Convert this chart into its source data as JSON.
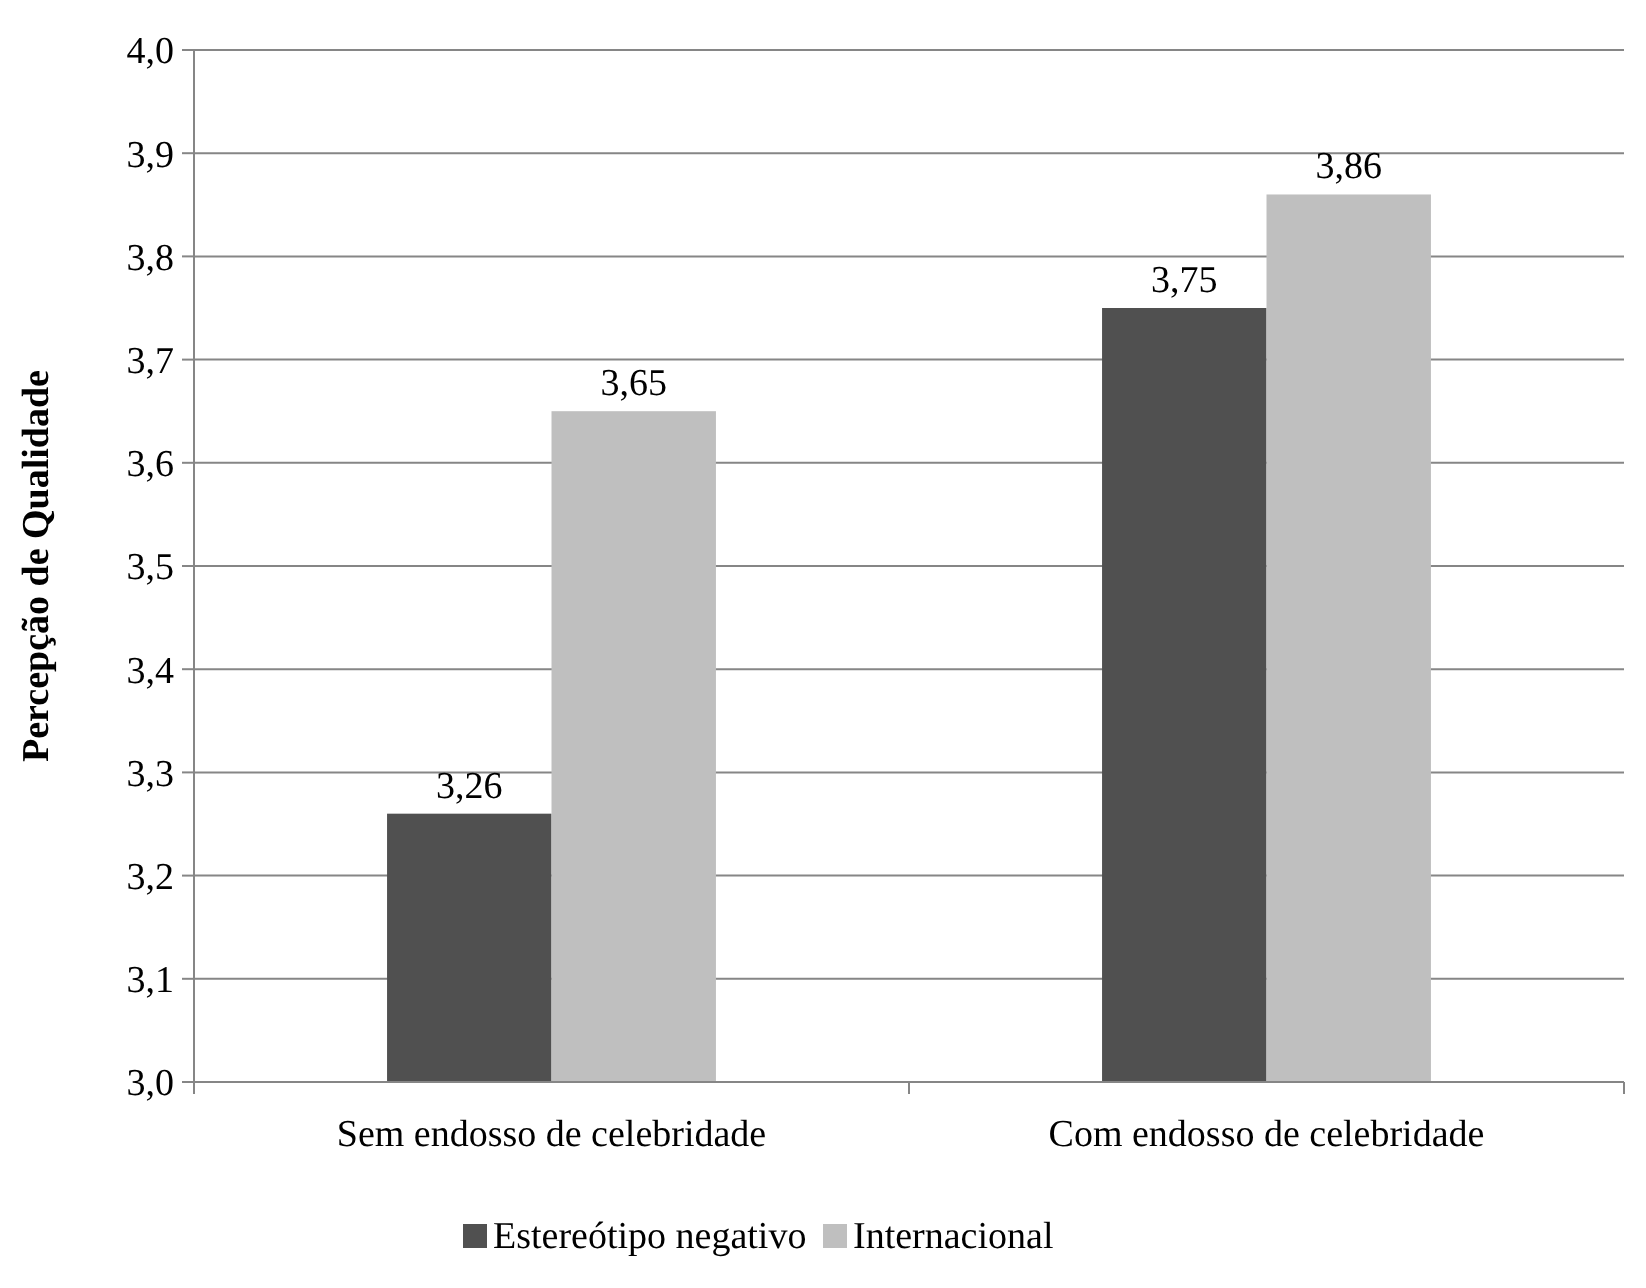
{
  "chart_data": {
    "type": "bar",
    "ylabel": "Percepção de Qualidade",
    "categories": [
      "Sem endosso de celebridade",
      "Com endosso de celebridade"
    ],
    "series": [
      {
        "name": "Estereótipo negativo",
        "color": "#505050",
        "values": [
          3.26,
          3.75
        ],
        "value_labels": [
          "3,26",
          "3,75"
        ]
      },
      {
        "name": "Internacional",
        "color": "#bfbfbf",
        "values": [
          3.65,
          3.86
        ],
        "value_labels": [
          "3,65",
          "3,86"
        ]
      }
    ],
    "ylim": [
      3.0,
      4.0
    ],
    "yticks": [
      {
        "value": 3.0,
        "label": "3,0"
      },
      {
        "value": 3.1,
        "label": "3,1"
      },
      {
        "value": 3.2,
        "label": "3,2"
      },
      {
        "value": 3.3,
        "label": "3,3"
      },
      {
        "value": 3.4,
        "label": "3,4"
      },
      {
        "value": 3.5,
        "label": "3,5"
      },
      {
        "value": 3.6,
        "label": "3,6"
      },
      {
        "value": 3.7,
        "label": "3,7"
      },
      {
        "value": 3.8,
        "label": "3,8"
      },
      {
        "value": 3.9,
        "label": "3,9"
      },
      {
        "value": 4.0,
        "label": "4,0"
      }
    ],
    "grid": "y",
    "legend": "bottom"
  }
}
